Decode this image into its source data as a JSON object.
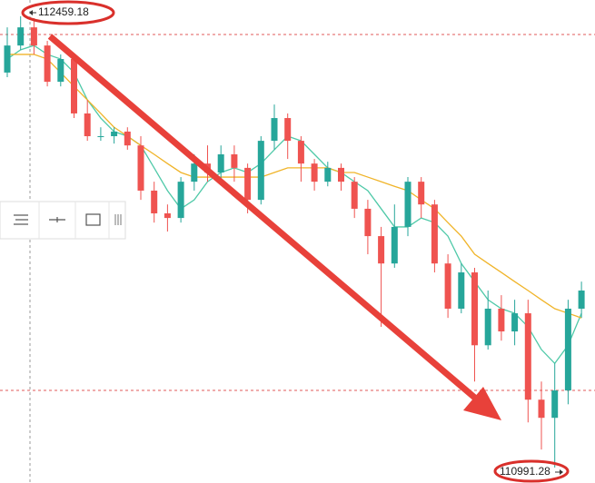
{
  "chart_data": {
    "type": "candlestick",
    "ylim": [
      110941,
      112512
    ],
    "up_color": "#26a69a",
    "down_color": "#ef5350",
    "open": [
      112276,
      112364,
      112423,
      112364,
      112246,
      112320,
      112143,
      112069,
      112069,
      112084,
      112039,
      111892,
      111818,
      111803,
      111921,
      111980,
      111951,
      112010,
      111966,
      111862,
      112054,
      112128,
      112054,
      111980,
      111921,
      111966,
      111921,
      111833,
      111744,
      111655,
      111774,
      111921,
      111847,
      111655,
      111508,
      111626,
      111389,
      111508,
      111434,
      111493,
      111212,
      111153,
      111242,
      111508
    ],
    "high": [
      112423,
      112459.18,
      112453,
      112379,
      112335,
      112335,
      112187,
      112098,
      112098,
      112098,
      112069,
      111921,
      111847,
      111936,
      112010,
      112039,
      112039,
      112039,
      111980,
      112069,
      112172,
      112143,
      112069,
      111995,
      111986,
      111980,
      111936,
      111862,
      111774,
      111847,
      111936,
      111936,
      111862,
      111685,
      111655,
      111641,
      111567,
      111552,
      111537,
      111537,
      111271,
      111330,
      111537,
      111596
    ],
    "low": [
      112261,
      112350,
      112335,
      112231,
      112231,
      112128,
      112054,
      112054,
      112045,
      112025,
      111862,
      111788,
      111759,
      111788,
      111892,
      111921,
      111921,
      111921,
      111818,
      111847,
      112025,
      111995,
      111921,
      111892,
      111906,
      111892,
      111803,
      111685,
      111449,
      111641,
      111744,
      111803,
      111626,
      111478,
      111493,
      111271,
      111375,
      111404,
      111389,
      111138,
      111050,
      110991.28,
      111197,
      111478
    ],
    "close": [
      112364,
      112423,
      112364,
      112246,
      112320,
      112143,
      112069,
      112069,
      112084,
      112039,
      111892,
      111818,
      111803,
      111921,
      111980,
      111951,
      112010,
      111966,
      111862,
      112054,
      112128,
      112054,
      111980,
      111921,
      111966,
      111921,
      111833,
      111744,
      111655,
      111774,
      111921,
      111847,
      111655,
      111508,
      111626,
      111389,
      111508,
      111434,
      111493,
      111212,
      111153,
      111242,
      111508,
      111567
    ],
    "lines": [
      {
        "color": "#4fc9a8",
        "values": [
          112320,
          112350,
          112364,
          112335,
          112320,
          112276,
          112187,
          112128,
          112084,
          112069,
          112039,
          111966,
          111892,
          111833,
          111862,
          111921,
          111951,
          111966,
          111951,
          111980,
          112025,
          112069,
          112054,
          112010,
          111966,
          111951,
          111921,
          111892,
          111833,
          111774,
          111774,
          111803,
          111788,
          111744,
          111655,
          111596,
          111537,
          111508,
          111493,
          111449,
          111375,
          111330,
          111389,
          111493
        ]
      },
      {
        "color": "#f0b429",
        "values": [
          112335,
          112335,
          112335,
          112320,
          112276,
          112231,
          112187,
          112143,
          112098,
          112069,
          112039,
          112010,
          111980,
          111951,
          111936,
          111936,
          111936,
          111936,
          111936,
          111936,
          111951,
          111966,
          111966,
          111966,
          111966,
          111951,
          111951,
          111936,
          111921,
          111906,
          111892,
          111862,
          111833,
          111788,
          111744,
          111685,
          111655,
          111626,
          111596,
          111567,
          111537,
          111508,
          111493,
          111478
        ]
      }
    ],
    "high_label": "112459.18",
    "low_label": "110991.28"
  }
}
